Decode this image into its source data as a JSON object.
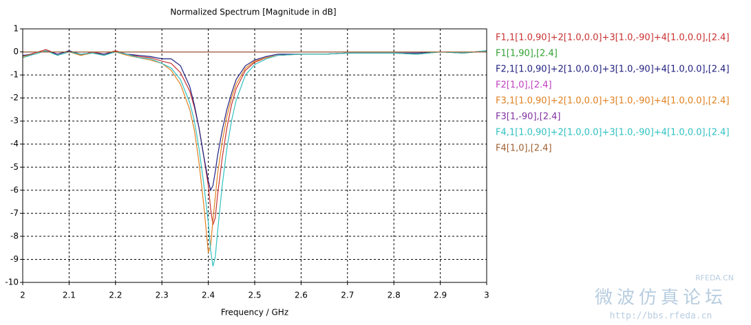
{
  "chart_data": {
    "type": "line",
    "title": "Normalized Spectrum [Magnitude in dB]",
    "xlabel": "Frequency / GHz",
    "x": [
      2,
      2.025,
      2.05,
      2.075,
      2.1,
      2.125,
      2.15,
      2.175,
      2.2,
      2.225,
      2.25,
      2.275,
      2.3,
      2.32,
      2.34,
      2.36,
      2.37,
      2.38,
      2.39,
      2.4,
      2.405,
      2.41,
      2.415,
      2.42,
      2.43,
      2.44,
      2.45,
      2.46,
      2.48,
      2.5,
      2.525,
      2.55,
      2.6,
      2.65,
      2.7,
      2.75,
      2.8,
      2.85,
      2.9,
      2.95,
      3
    ],
    "xlim": [
      2,
      3
    ],
    "xticks": [
      2,
      2.1,
      2.2,
      2.3,
      2.4,
      2.5,
      2.6,
      2.7,
      2.8,
      2.9,
      3
    ],
    "ylim": [
      -10,
      1
    ],
    "yticks": [
      -10,
      -9,
      -8,
      -7,
      -6,
      -5,
      -4,
      -3,
      -2,
      -1,
      0,
      1
    ],
    "grid": true,
    "legend": "right",
    "series": [
      {
        "name": "F1[1,90],[2.4]",
        "color": "#30a030",
        "values": [
          0,
          0,
          0,
          0,
          0,
          0,
          0,
          0,
          0,
          0,
          0,
          0,
          0,
          0,
          0,
          0,
          0,
          0,
          0,
          0,
          0,
          0,
          0,
          0,
          0,
          0,
          0,
          0,
          0,
          0,
          0,
          0,
          0,
          0,
          0,
          0,
          0,
          0,
          0,
          0,
          0
        ]
      },
      {
        "name": "F2[1,0],[2.4]",
        "color": "#c040c0",
        "values": [
          0,
          0,
          0,
          0,
          0,
          0,
          0,
          0,
          0,
          0,
          0,
          0,
          0,
          0,
          0,
          0,
          0,
          0,
          0,
          0,
          0,
          0,
          0,
          0,
          0,
          0,
          0,
          0,
          0,
          0,
          0,
          0,
          0,
          0,
          0,
          0,
          0,
          0,
          0,
          0,
          0
        ]
      },
      {
        "name": "F3[1,-90],[2.4]",
        "color": "#8030a0",
        "values": [
          0,
          0,
          0,
          0,
          0,
          0,
          0,
          0,
          0,
          0,
          0,
          0,
          0,
          0,
          0,
          0,
          0,
          0,
          0,
          0,
          0,
          0,
          0,
          0,
          0,
          0,
          0,
          0,
          0,
          0,
          0,
          0,
          0,
          0,
          0,
          0,
          0,
          0,
          0,
          0,
          0
        ]
      },
      {
        "name": "F4[1,0],[2.4]",
        "color": "#a06030",
        "values": [
          0,
          0,
          0,
          0,
          0,
          0,
          0,
          0,
          0,
          0,
          0,
          0,
          0,
          0,
          0,
          0,
          0,
          0,
          0,
          0,
          0,
          0,
          0,
          0,
          0,
          0,
          0,
          0,
          0,
          0,
          0,
          0,
          0,
          0,
          0,
          0,
          0,
          0,
          0,
          0,
          0
        ]
      },
      {
        "name": "F1,1[1.0,90]+2[1.0,0.0]+3[1.0,-90]+4[1.0,0.0],[2.4]",
        "color": "#c83030",
        "values": [
          -0.2,
          -0.05,
          0.1,
          -0.1,
          0.05,
          -0.15,
          0,
          -0.1,
          0.05,
          -0.1,
          -0.2,
          -0.25,
          -0.4,
          -0.5,
          -0.9,
          -1.7,
          -2.4,
          -3.3,
          -4.5,
          -5.8,
          -6.8,
          -7.5,
          -7.2,
          -6.2,
          -4.6,
          -3.3,
          -2.3,
          -1.6,
          -0.8,
          -0.45,
          -0.25,
          -0.15,
          -0.1,
          -0.1,
          -0.05,
          -0.05,
          -0.05,
          -0.1,
          0,
          -0.05,
          0.05
        ]
      },
      {
        "name": "F2,1[1.0,90]+2[1.0,0.0]+3[1.0,-90]+4[1.0,0.0],[2.4]",
        "color": "#202080",
        "values": [
          -0.15,
          -0.1,
          0.05,
          -0.1,
          0.05,
          -0.1,
          -0.05,
          -0.1,
          0,
          -0.1,
          -0.15,
          -0.2,
          -0.3,
          -0.3,
          -0.6,
          -1.5,
          -2.3,
          -3.3,
          -4.5,
          -5.6,
          -6,
          -5.8,
          -5.2,
          -4.5,
          -3.4,
          -2.5,
          -1.8,
          -1.2,
          -0.6,
          -0.35,
          -0.2,
          -0.1,
          -0.1,
          -0.1,
          -0.05,
          -0.05,
          -0.05,
          -0.05,
          0,
          -0.05,
          0.05
        ]
      },
      {
        "name": "F3,1[1.0,90]+2[1.0,0.0]+3[1.0,-90]+4[1.0,0.0],[2.4]",
        "color": "#e08020",
        "values": [
          -0.2,
          -0.1,
          0.05,
          -0.15,
          0,
          -0.15,
          -0.05,
          -0.15,
          0,
          -0.15,
          -0.25,
          -0.35,
          -0.5,
          -0.8,
          -1.4,
          -2.5,
          -3.4,
          -4.8,
          -6.6,
          -8.7,
          -8.4,
          -7.3,
          -6.3,
          -5.3,
          -3.9,
          -2.8,
          -2,
          -1.4,
          -0.7,
          -0.4,
          -0.25,
          -0.15,
          -0.1,
          -0.1,
          -0.05,
          -0.05,
          -0.05,
          -0.1,
          0,
          -0.05,
          0.05
        ]
      },
      {
        "name": "F4,1[1.0,90]+2[1.0,0.0]+3[1.0,-90]+4[1.0,0.0],[2.4]",
        "color": "#30c0c0",
        "values": [
          -0.25,
          -0.1,
          0.05,
          -0.15,
          0,
          -0.1,
          -0.05,
          -0.15,
          0,
          -0.1,
          -0.25,
          -0.3,
          -0.5,
          -0.7,
          -1.2,
          -2.2,
          -3,
          -4.2,
          -5.7,
          -7.4,
          -8.6,
          -9.3,
          -8.9,
          -7.8,
          -5.8,
          -4.2,
          -3,
          -2.1,
          -1,
          -0.55,
          -0.3,
          -0.15,
          -0.1,
          -0.1,
          -0.05,
          -0.05,
          -0.05,
          -0.1,
          0,
          -0.05,
          0.05
        ]
      }
    ],
    "legend_order": [
      4,
      0,
      5,
      1,
      6,
      2,
      7,
      3
    ],
    "watermark": {
      "brand": "RFEDA.CN",
      "name": "微波仿真论坛",
      "url": "http://bbs.rfeda.cn"
    }
  }
}
